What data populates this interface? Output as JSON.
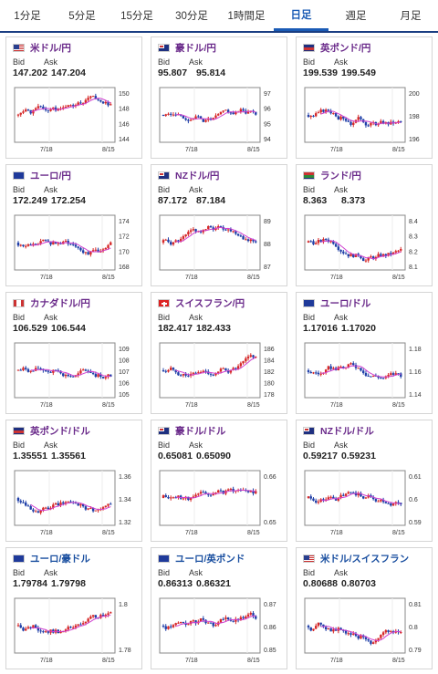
{
  "tabs": [
    {
      "label": "1分足",
      "active": false
    },
    {
      "label": "5分足",
      "active": false
    },
    {
      "label": "15分足",
      "active": false
    },
    {
      "label": "30分足",
      "active": false
    },
    {
      "label": "1時間足",
      "active": false
    },
    {
      "label": "日足",
      "active": true
    },
    {
      "label": "週足",
      "active": false
    },
    {
      "label": "月足",
      "active": false
    }
  ],
  "bid_label": "Bid",
  "ask_label": "Ask",
  "x_ticks": [
    "7/18",
    "8/15"
  ],
  "colors": {
    "up": "#d62828",
    "down": "#1f3fa8",
    "ma": "#d040d0",
    "accent": "#1a5bb5"
  },
  "cards": [
    {
      "pair": "米ドル/円",
      "flag": "us",
      "bid": "147.202",
      "ask": "147.204",
      "y_ticks": [
        "150",
        "148",
        "146",
        "144"
      ],
      "seed": 1
    },
    {
      "pair": "豪ドル/円",
      "flag": "au",
      "bid": "95.807",
      "ask": "95.814",
      "y_ticks": [
        "97",
        "96",
        "95",
        "94"
      ],
      "seed": 2
    },
    {
      "pair": "英ポンド/円",
      "flag": "gb",
      "bid": "199.539",
      "ask": "199.549",
      "y_ticks": [
        "200",
        "198",
        "196"
      ],
      "seed": 3
    },
    {
      "pair": "ユーロ/円",
      "flag": "eu",
      "bid": "172.249",
      "ask": "172.254",
      "y_ticks": [
        "174",
        "172",
        "170",
        "168"
      ],
      "seed": 4
    },
    {
      "pair": "NZドル/円",
      "flag": "nz",
      "bid": "87.172",
      "ask": "87.184",
      "y_ticks": [
        "89",
        "88",
        "87"
      ],
      "seed": 5
    },
    {
      "pair": "ランド/円",
      "flag": "za",
      "bid": "8.363",
      "ask": "8.373",
      "y_ticks": [
        "8.4",
        "8.3",
        "8.2",
        "8.1"
      ],
      "seed": 6
    },
    {
      "pair": "カナダドル/円",
      "flag": "ca",
      "bid": "106.529",
      "ask": "106.544",
      "y_ticks": [
        "109",
        "108",
        "107",
        "106",
        "105"
      ],
      "seed": 7
    },
    {
      "pair": "スイスフラン/円",
      "flag": "ch",
      "bid": "182.417",
      "ask": "182.433",
      "y_ticks": [
        "186",
        "184",
        "182",
        "180",
        "178"
      ],
      "seed": 8
    },
    {
      "pair": "ユーロ/ドル",
      "flag": "eu",
      "bid": "1.17016",
      "ask": "1.17020",
      "y_ticks": [
        "1.18",
        "1.16",
        "1.14"
      ],
      "seed": 9
    },
    {
      "pair": "英ポンド/ドル",
      "flag": "gb",
      "bid": "1.35551",
      "ask": "1.35561",
      "y_ticks": [
        "1.36",
        "1.34",
        "1.32"
      ],
      "seed": 10
    },
    {
      "pair": "豪ドル/ドル",
      "flag": "au",
      "bid": "0.65081",
      "ask": "0.65090",
      "y_ticks": [
        "0.66",
        "0.65"
      ],
      "seed": 11
    },
    {
      "pair": "NZドル/ドル",
      "flag": "nz",
      "bid": "0.59217",
      "ask": "0.59231",
      "y_ticks": [
        "0.61",
        "0.6",
        "0.59"
      ],
      "seed": 12
    },
    {
      "pair": "ユーロ/豪ドル",
      "flag": "eu",
      "bid": "1.79784",
      "ask": "1.79798",
      "y_ticks": [
        "1.8",
        "1.78"
      ],
      "seed": 13,
      "blue": true
    },
    {
      "pair": "ユーロ/英ポンド",
      "flag": "eu",
      "bid": "0.86313",
      "ask": "0.86321",
      "y_ticks": [
        "0.87",
        "0.86",
        "0.85"
      ],
      "seed": 14,
      "blue": true
    },
    {
      "pair": "米ドル/スイスフラン",
      "flag": "us",
      "bid": "0.80688",
      "ask": "0.80703",
      "y_ticks": [
        "0.81",
        "0.8",
        "0.79"
      ],
      "seed": 15,
      "blue": true
    }
  ]
}
